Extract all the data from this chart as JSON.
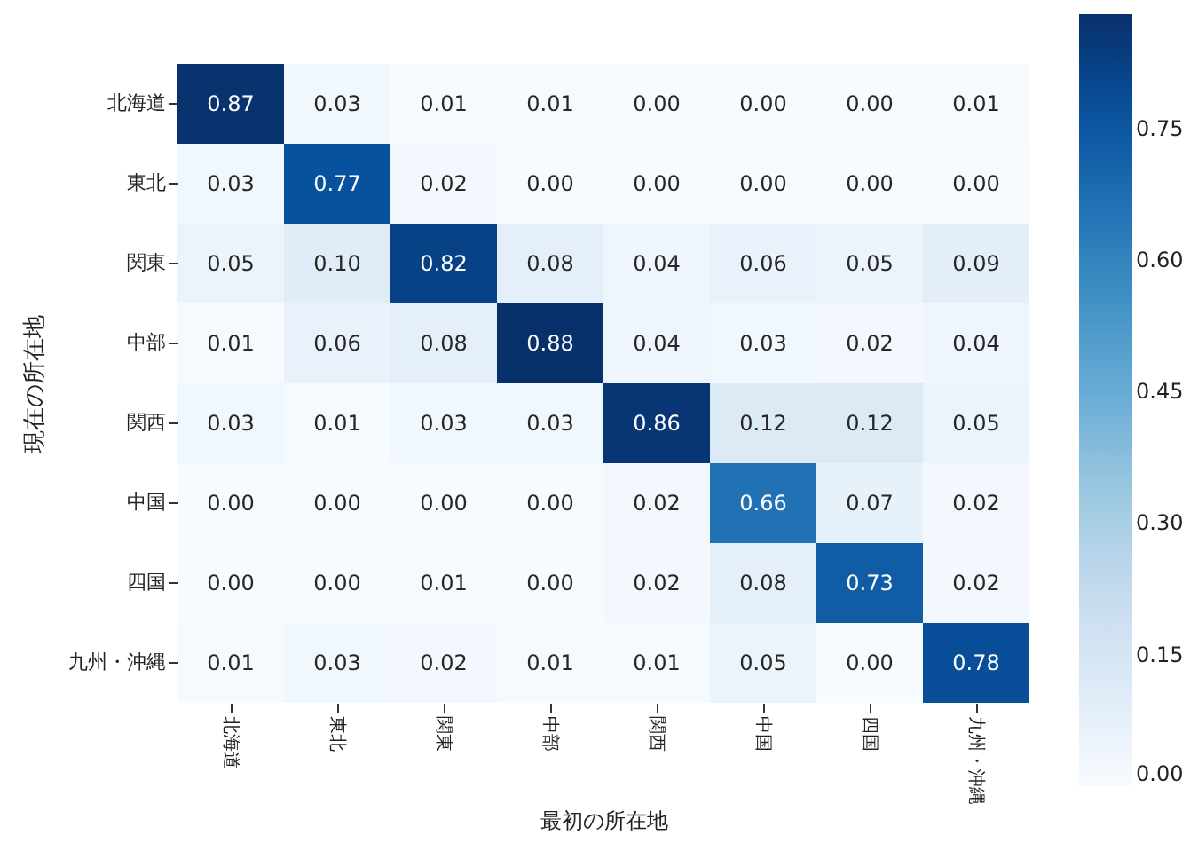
{
  "chart_data": {
    "type": "heatmap",
    "xlabel": "最初の所在地",
    "ylabel": "現在の所在地",
    "categories": [
      "北海道",
      "東北",
      "関東",
      "中部",
      "関西",
      "中国",
      "四国",
      "九州・沖縄"
    ],
    "y_categories": [
      "北海道",
      "東北",
      "関東",
      "中部",
      "関西",
      "中国",
      "四国",
      "九州・沖縄"
    ],
    "cells": [
      [
        0.87,
        0.03,
        0.01,
        0.01,
        0.0,
        0.0,
        0.0,
        0.01
      ],
      [
        0.03,
        0.77,
        0.02,
        0.0,
        0.0,
        0.0,
        0.0,
        0.0
      ],
      [
        0.05,
        0.1,
        0.82,
        0.08,
        0.04,
        0.06,
        0.05,
        0.09
      ],
      [
        0.01,
        0.06,
        0.08,
        0.88,
        0.04,
        0.03,
        0.02,
        0.04
      ],
      [
        0.03,
        0.01,
        0.03,
        0.03,
        0.86,
        0.12,
        0.12,
        0.05
      ],
      [
        0.0,
        0.0,
        0.0,
        0.0,
        0.02,
        0.66,
        0.07,
        0.02
      ],
      [
        0.0,
        0.0,
        0.01,
        0.0,
        0.02,
        0.08,
        0.73,
        0.02
      ],
      [
        0.01,
        0.03,
        0.02,
        0.01,
        0.01,
        0.05,
        0.0,
        0.78
      ]
    ],
    "cell_labels": [
      [
        "0.87",
        "0.03",
        "0.01",
        "0.01",
        "0.00",
        "0.00",
        "0.00",
        "0.01"
      ],
      [
        "0.03",
        "0.77",
        "0.02",
        "0.00",
        "0.00",
        "0.00",
        "0.00",
        "0.00"
      ],
      [
        "0.05",
        "0.10",
        "0.82",
        "0.08",
        "0.04",
        "0.06",
        "0.05",
        "0.09"
      ],
      [
        "0.01",
        "0.06",
        "0.08",
        "0.88",
        "0.04",
        "0.03",
        "0.02",
        "0.04"
      ],
      [
        "0.03",
        "0.01",
        "0.03",
        "0.03",
        "0.86",
        "0.12",
        "0.12",
        "0.05"
      ],
      [
        "0.00",
        "0.00",
        "0.00",
        "0.00",
        "0.02",
        "0.66",
        "0.07",
        "0.02"
      ],
      [
        "0.00",
        "0.00",
        "0.01",
        "0.00",
        "0.02",
        "0.08",
        "0.73",
        "0.02"
      ],
      [
        "0.01",
        "0.03",
        "0.02",
        "0.01",
        "0.01",
        "0.05",
        "0.00",
        "0.78"
      ]
    ],
    "clim": [
      0,
      0.88
    ],
    "cticks": [
      {
        "value": 0,
        "label": "0.00"
      },
      {
        "value": 0.15,
        "label": "0.15"
      },
      {
        "value": 0.3,
        "label": "0.30"
      },
      {
        "value": 0.45,
        "label": "0.45"
      },
      {
        "value": 0.6,
        "label": "0.60"
      },
      {
        "value": 0.75,
        "label": "0.75"
      }
    ]
  }
}
